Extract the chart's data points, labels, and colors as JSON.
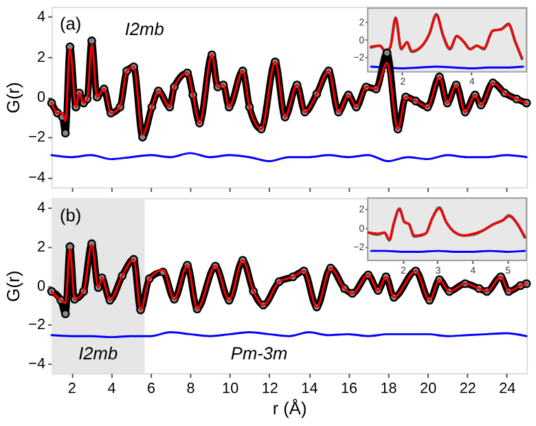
{
  "chart_data": [
    {
      "type": "line",
      "annotations": [
        "(a)",
        "I2mb"
      ],
      "ylabel": "G(r)",
      "xlim": [
        1,
        25
      ],
      "ylim": [
        -4.5,
        4.5
      ],
      "xticks": [
        2,
        4,
        6,
        8,
        10,
        12,
        14,
        16,
        18,
        20,
        22,
        24
      ],
      "yticks": [
        -4,
        -2,
        0,
        2,
        4
      ],
      "tick_labels": "y",
      "x": [
        1.0,
        1.3,
        1.55,
        1.7,
        1.93,
        2.23,
        2.4,
        2.62,
        2.8,
        3.03,
        3.3,
        3.65,
        4.0,
        4.46,
        4.8,
        5.15,
        5.6,
        6.07,
        6.4,
        6.97,
        7.2,
        7.86,
        8.14,
        8.48,
        9.1,
        9.4,
        9.68,
        9.97,
        10.66,
        11.0,
        11.6,
        12.3,
        12.8,
        13.4,
        13.8,
        14.4,
        15.0,
        15.5,
        16.0,
        16.4,
        16.9,
        17.4,
        17.95,
        18.5,
        18.9,
        19.4,
        20.0,
        20.6,
        21.0,
        21.45,
        21.9,
        22.4,
        22.7,
        23.3,
        23.9,
        24.5,
        25.0
      ],
      "series": [
        {
          "type": "line",
          "marker": "circle",
          "color": "#000000",
          "values": [
            -0.3,
            -0.8,
            -1.0,
            -1.8,
            2.5,
            -0.5,
            0.2,
            -0.3,
            -0.1,
            2.8,
            0.0,
            0.4,
            -0.8,
            -0.5,
            1.3,
            1.5,
            -2.0,
            -0.5,
            0.3,
            -0.5,
            0.5,
            1.2,
            0.1,
            -1.3,
            2.1,
            0.5,
            0.6,
            -0.5,
            1.3,
            -0.5,
            -1.6,
            1.75,
            -1.0,
            0.6,
            -0.75,
            0.15,
            1.3,
            -0.75,
            0.1,
            -0.5,
            0.5,
            0.4,
            2.2,
            -1.6,
            0.0,
            -0.2,
            -0.5,
            1.0,
            -0.3,
            0.6,
            -0.75,
            0.1,
            -0.4,
            0.7,
            0.2,
            -0.1,
            -0.3
          ]
        },
        {
          "type": "line",
          "color": "#ff0000",
          "values": [
            -0.3,
            -0.8,
            -0.8,
            -1.2,
            2.4,
            -0.5,
            0.2,
            -0.3,
            -0.1,
            2.6,
            0.0,
            0.4,
            -0.8,
            -0.5,
            1.3,
            1.5,
            -1.9,
            -0.5,
            0.3,
            -0.5,
            0.5,
            1.2,
            0.1,
            -1.3,
            2.1,
            0.5,
            0.6,
            -0.5,
            1.3,
            -0.5,
            -1.6,
            1.75,
            -1.0,
            0.6,
            -0.75,
            0.15,
            1.3,
            -0.75,
            0.1,
            -0.5,
            0.5,
            0.4,
            1.7,
            -1.6,
            0.0,
            -0.2,
            -0.5,
            1.0,
            -0.3,
            0.6,
            -0.75,
            0.1,
            -0.4,
            0.7,
            0.2,
            -0.1,
            -0.3
          ]
        },
        {
          "type": "line",
          "color": "#0000ff",
          "x": [
            1,
            2,
            3,
            4,
            5,
            6,
            7,
            8,
            9,
            10,
            11,
            12,
            13,
            14,
            15,
            16,
            17,
            18,
            19,
            20,
            21,
            22,
            23,
            24,
            25
          ],
          "values": [
            -2.9,
            -3.0,
            -2.9,
            -3.1,
            -3.0,
            -2.9,
            -3.0,
            -2.8,
            -3.0,
            -2.9,
            -3.0,
            -3.2,
            -3.0,
            -3.0,
            -2.9,
            -3.0,
            -2.9,
            -3.2,
            -3.0,
            -3.1,
            -2.9,
            -3.0,
            -3.0,
            -2.9,
            -3.0
          ]
        }
      ]
    },
    {
      "type": "line",
      "xlim": [
        1,
        5.6
      ],
      "ylim": [
        -3.7,
        3.6
      ],
      "xticks": [
        2,
        4
      ],
      "yticks": [
        -2,
        0,
        2
      ],
      "x": [
        1.09,
        1.35,
        1.52,
        1.65,
        1.81,
        1.97,
        2.14,
        2.27,
        2.6,
        2.79,
        2.99,
        3.18,
        3.38,
        3.58,
        3.77,
        3.97,
        4.16,
        4.36,
        4.62,
        4.88,
        5.08,
        5.27,
        5.47
      ],
      "series": [
        {
          "type": "line",
          "color": "#555555",
          "values": [
            -0.9,
            -0.7,
            -1.4,
            -0.9,
            2.5,
            -1.1,
            -0.3,
            -1.4,
            -0.6,
            0.7,
            2.9,
            0.5,
            -1.1,
            0.4,
            -0.2,
            -1.1,
            -0.7,
            -1.1,
            1.0,
            1.2,
            1.8,
            -0.2,
            -2.2
          ]
        },
        {
          "type": "line",
          "color": "#ff0000",
          "values": [
            -0.8,
            -0.7,
            -1.3,
            -0.9,
            2.4,
            -1.0,
            -0.3,
            -1.3,
            -0.6,
            0.7,
            2.8,
            0.5,
            -1.0,
            0.4,
            -0.2,
            -1.1,
            -0.7,
            -1.0,
            1.0,
            1.2,
            1.7,
            -0.2,
            -2.1
          ]
        },
        {
          "type": "line",
          "color": "#0000ff",
          "x": [
            1.1,
            1.5,
            2,
            2.5,
            3,
            3.5,
            4,
            4.5,
            5,
            5.5
          ],
          "values": [
            -3.1,
            -3.2,
            -3.3,
            -3.2,
            -3.1,
            -3.2,
            -3.3,
            -3.2,
            -3.2,
            -3.1
          ]
        }
      ]
    },
    {
      "type": "line",
      "annotations": [
        "(b)",
        "Pm-3m"
      ],
      "xlabel": "r (Å)",
      "ylabel": "G(r)",
      "xlim": [
        1,
        25
      ],
      "ylim": [
        -4.5,
        4.5
      ],
      "xticks": [
        2,
        4,
        6,
        8,
        10,
        12,
        14,
        16,
        18,
        20,
        22,
        24
      ],
      "yticks": [
        -4,
        -2,
        0,
        2,
        4
      ],
      "bands": [
        {
          "axis": "x",
          "from": 1,
          "to": 5.7,
          "label": "I2mb",
          "color": "#e6e6e6"
        }
      ],
      "x": [
        1.0,
        1.47,
        1.7,
        1.93,
        2.16,
        2.62,
        3.03,
        3.36,
        3.54,
        3.95,
        4.57,
        5.15,
        5.5,
        5.94,
        6.63,
        7.2,
        7.86,
        8.36,
        9.28,
        9.97,
        10.66,
        11.2,
        11.7,
        12.5,
        13.2,
        13.75,
        14.4,
        15.1,
        15.8,
        16.2,
        17.0,
        17.5,
        17.9,
        18.3,
        19.4,
        20.1,
        20.6,
        21.1,
        21.9,
        22.6,
        23.0,
        23.7,
        24.1,
        24.7,
        25.0
      ],
      "series": [
        {
          "type": "line",
          "marker": "circle",
          "color": "#000000",
          "values": [
            -0.3,
            -0.75,
            -1.45,
            2.0,
            -0.7,
            -0.3,
            2.15,
            -0.1,
            0.4,
            -0.75,
            0.5,
            1.35,
            -1.25,
            0.35,
            0.7,
            -0.7,
            1.05,
            -1.2,
            1.0,
            -0.75,
            1.3,
            -0.3,
            -1.0,
            0.2,
            0.45,
            0.75,
            -1.1,
            0.9,
            -0.15,
            -0.4,
            0.55,
            -0.25,
            0.45,
            -0.6,
            0.75,
            -0.75,
            0.3,
            -0.3,
            0.1,
            -0.15,
            -0.3,
            0.45,
            -0.3,
            0.0,
            0.1
          ]
        },
        {
          "type": "line",
          "color": "#ff0000",
          "values": [
            -0.3,
            -0.75,
            -0.9,
            1.9,
            -0.7,
            -0.3,
            2.1,
            -0.1,
            0.4,
            -0.75,
            0.5,
            1.35,
            -1.25,
            0.35,
            0.8,
            -0.7,
            1.05,
            -1.2,
            1.0,
            -0.75,
            1.3,
            -0.3,
            -1.0,
            0.2,
            0.45,
            0.75,
            -1.1,
            0.9,
            -0.15,
            -0.4,
            0.55,
            -0.25,
            0.45,
            -0.6,
            0.75,
            -0.75,
            0.3,
            -0.3,
            0.1,
            -0.15,
            -0.3,
            0.45,
            -0.3,
            0.0,
            0.1
          ]
        },
        {
          "type": "line",
          "color": "#0000ff",
          "x": [
            1,
            2,
            3,
            4,
            5,
            6,
            7,
            8,
            9,
            10,
            11,
            12,
            13,
            14,
            15,
            16,
            17,
            18,
            19,
            20,
            21,
            22,
            23,
            24,
            25
          ],
          "values": [
            -2.55,
            -2.6,
            -2.6,
            -2.65,
            -2.6,
            -2.6,
            -2.4,
            -2.5,
            -2.6,
            -2.5,
            -2.4,
            -2.5,
            -2.6,
            -2.4,
            -2.55,
            -2.5,
            -2.6,
            -2.5,
            -2.5,
            -2.5,
            -2.6,
            -2.55,
            -2.5,
            -2.45,
            -2.6
          ]
        }
      ]
    },
    {
      "type": "line",
      "xlim": [
        1,
        5.55
      ],
      "ylim": [
        -3.4,
        3.1
      ],
      "xticks": [
        2,
        3,
        4,
        5
      ],
      "yticks": [
        -2,
        0,
        2
      ],
      "x": [
        1.03,
        1.29,
        1.48,
        1.62,
        1.75,
        1.91,
        2.05,
        2.18,
        2.33,
        2.66,
        2.85,
        3.05,
        3.25,
        3.51,
        3.77,
        4.03,
        4.29,
        4.62,
        4.88,
        5.05,
        5.27,
        5.5
      ],
      "series": [
        {
          "type": "line",
          "color": "#555555",
          "values": [
            -0.5,
            -0.7,
            -0.5,
            -1.3,
            0.5,
            2.0,
            0.6,
            0.4,
            -0.9,
            -0.6,
            1.0,
            2.1,
            0.6,
            -0.5,
            -0.8,
            -0.7,
            -0.3,
            0.4,
            0.8,
            1.3,
            0.5,
            -1.0
          ]
        },
        {
          "type": "line",
          "color": "#ff0000",
          "values": [
            -0.5,
            -0.6,
            -0.5,
            -1.2,
            0.5,
            1.9,
            0.6,
            0.4,
            -0.8,
            -0.6,
            1.0,
            2.0,
            0.6,
            -0.5,
            -0.8,
            -0.6,
            -0.3,
            0.4,
            0.8,
            1.2,
            0.5,
            -0.9
          ]
        },
        {
          "type": "line",
          "color": "#0000ff",
          "x": [
            1.1,
            1.5,
            2,
            2.5,
            3,
            3.5,
            4,
            4.5,
            5,
            5.5
          ],
          "values": [
            -2.4,
            -2.4,
            -2.5,
            -2.5,
            -2.4,
            -2.5,
            -2.5,
            -2.4,
            -2.5,
            -2.4
          ]
        }
      ]
    }
  ]
}
